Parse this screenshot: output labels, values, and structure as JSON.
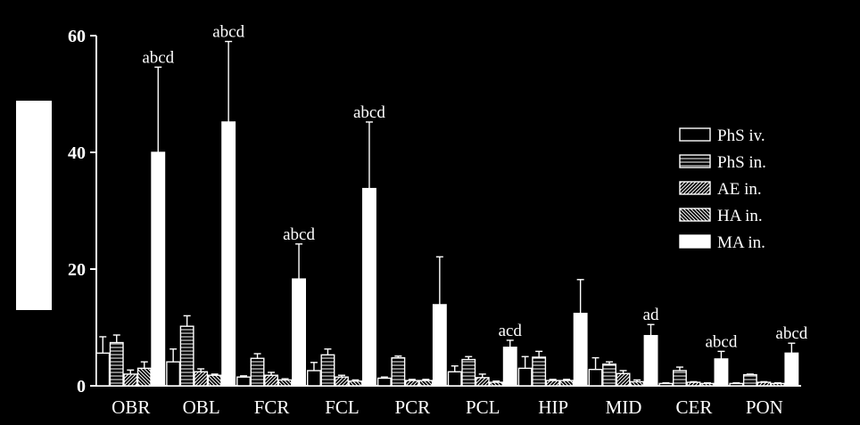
{
  "chart_data": {
    "type": "bar",
    "categories": [
      "OBR",
      "OBL",
      "FCR",
      "FCL",
      "PCR",
      "PCL",
      "HIP",
      "MID",
      "CER",
      "PON"
    ],
    "ylim": [
      0,
      60
    ],
    "yticks": [
      0,
      20,
      40,
      60
    ],
    "grid": false,
    "legend_position": "right",
    "ylabel": "",
    "xlabel": "",
    "title": "",
    "series": [
      {
        "name": "PhS iv.",
        "pattern": "empty",
        "values": [
          5.6,
          4.1,
          1.5,
          2.6,
          1.3,
          2.4,
          3.0,
          2.8,
          0.4,
          0.4
        ],
        "errors": [
          2.8,
          2.2,
          0.2,
          1.4,
          0.2,
          1.0,
          2.0,
          2.0,
          0.1,
          0.1
        ]
      },
      {
        "name": "PhS in.",
        "pattern": "horizontal",
        "values": [
          7.4,
          10.2,
          4.7,
          5.3,
          4.8,
          4.5,
          4.9,
          3.7,
          2.6,
          1.9
        ],
        "errors": [
          1.3,
          1.8,
          0.8,
          1.0,
          0.3,
          0.5,
          1.0,
          0.4,
          0.6,
          0.1
        ]
      },
      {
        "name": "AE in.",
        "pattern": "diagonal",
        "values": [
          2.0,
          2.4,
          1.8,
          1.5,
          0.9,
          1.4,
          0.9,
          2.1,
          0.6,
          0.6
        ],
        "errors": [
          0.7,
          0.5,
          0.5,
          0.3,
          0.2,
          0.6,
          0.2,
          0.5,
          0.1,
          0.1
        ]
      },
      {
        "name": "HA in.",
        "pattern": "backdiagonal",
        "values": [
          3.0,
          1.8,
          1.0,
          0.8,
          0.9,
          0.6,
          0.9,
          0.7,
          0.4,
          0.4
        ],
        "errors": [
          1.1,
          0.2,
          0.2,
          0.2,
          0.2,
          0.2,
          0.2,
          0.3,
          0.1,
          0.1
        ]
      },
      {
        "name": "MA in.",
        "pattern": "solid",
        "values": [
          40.0,
          45.2,
          18.3,
          33.8,
          13.9,
          6.6,
          12.4,
          8.6,
          4.6,
          5.6
        ],
        "errors": [
          14.6,
          13.8,
          6.0,
          11.4,
          8.2,
          1.2,
          5.8,
          1.9,
          1.3,
          1.7
        ]
      }
    ],
    "annotations": [
      "abcd",
      "abcd",
      "abcd",
      "abcd",
      "",
      "acd",
      "",
      "ad",
      "abcd",
      "abcd"
    ]
  }
}
